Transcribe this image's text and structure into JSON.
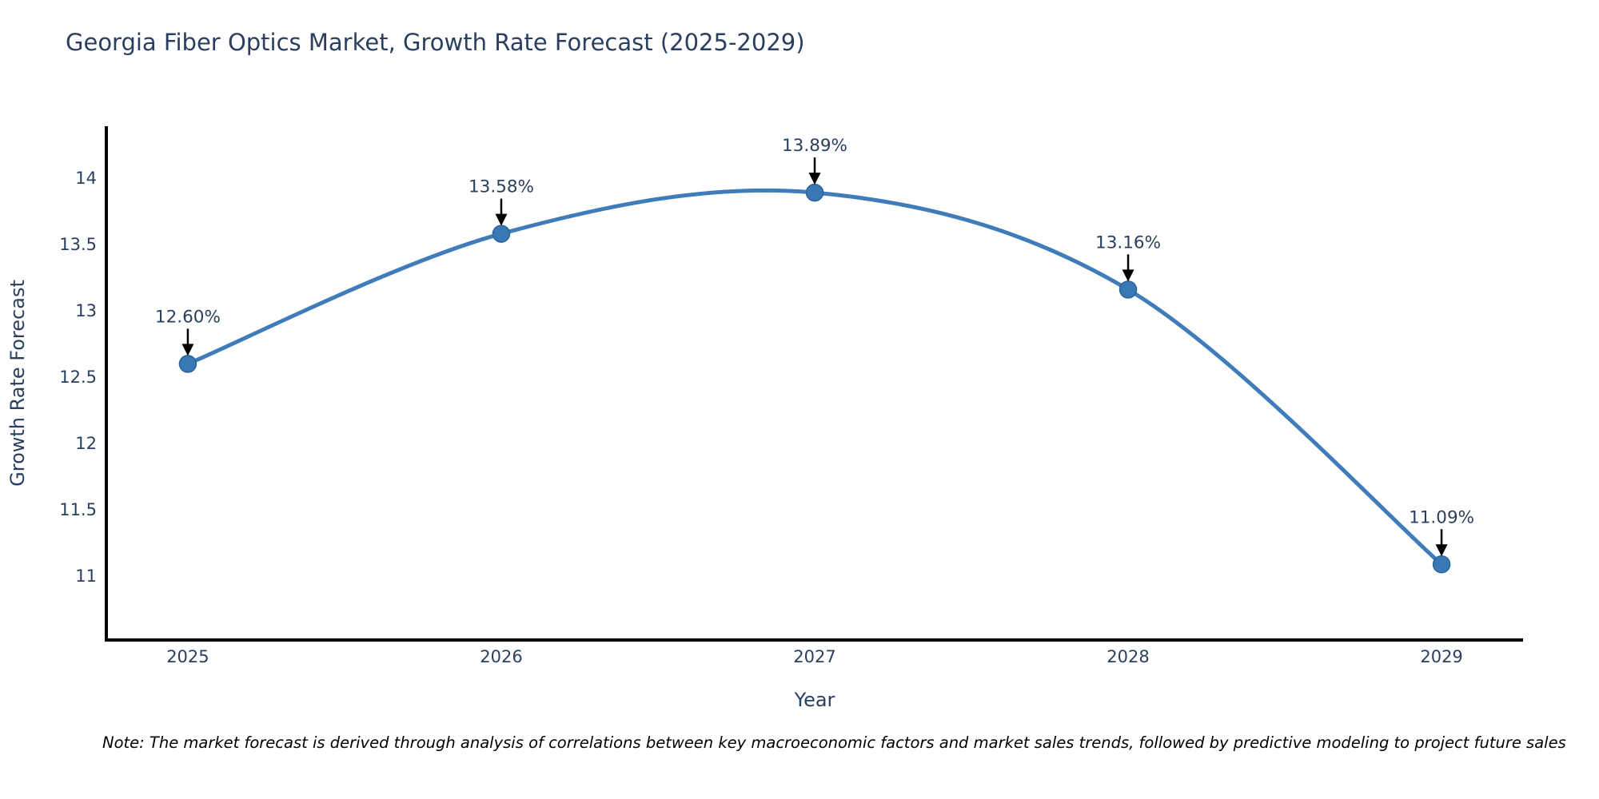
{
  "title": "Georgia Fiber Optics Market, Growth Rate Forecast (2025-2029)",
  "note": "Note: The market forecast is derived through analysis of correlations between key macroeconomic factors and market sales trends, followed by predictive modeling to project future sales",
  "chart_data": {
    "type": "line",
    "title": "Georgia Fiber Optics Market, Growth Rate Forecast (2025-2029)",
    "x": [
      2025,
      2026,
      2027,
      2028,
      2029
    ],
    "values": [
      12.6,
      13.58,
      13.89,
      13.16,
      11.09
    ],
    "point_labels": [
      "12.60%",
      "13.58%",
      "13.89%",
      "13.16%",
      "11.09%"
    ],
    "xlabel": "Year",
    "ylabel": "Growth Rate Forecast",
    "xlim": [
      2024.74,
      2029.26
    ],
    "ylim": [
      10.52,
      14.39
    ],
    "xticks": [
      2025,
      2026,
      2027,
      2028,
      2029
    ],
    "xtick_labels": [
      "2025",
      "2026",
      "2027",
      "2028",
      "2029"
    ],
    "yticks": [
      11,
      11.5,
      12,
      12.5,
      13,
      13.5,
      14
    ],
    "ytick_labels": [
      "11",
      "11.5",
      "12",
      "12.5",
      "13",
      "13.5",
      "14"
    ],
    "line_shape": "spline",
    "grid": false,
    "legend_position": "none",
    "colors": {
      "line": "#3f7cb9",
      "marker_fill": "#3878b4",
      "marker_edge": "#2d6394",
      "spine": "#000000",
      "arrow": "#000000",
      "title_text": "#2a3f5f",
      "axis_text": "#2a3f5f",
      "annotation_text": "#2a3f5f",
      "note_text": "#000000",
      "background": "#ffffff"
    }
  }
}
